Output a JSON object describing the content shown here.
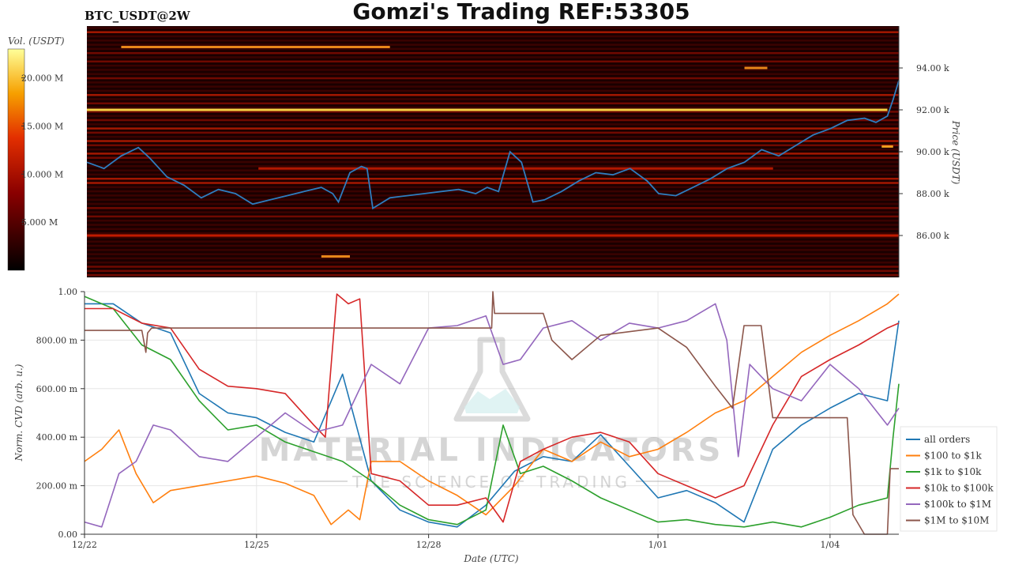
{
  "header": {
    "title": "Gomzi's Trading REF:53305",
    "symbol": "BTC_USDT@2W"
  },
  "watermark": {
    "line1": "MATERIAL INDICATORS",
    "line2": "THE SCIENCE OF TRADING"
  },
  "colors": {
    "heatmap_bg": "#1a0000",
    "price_line": "#2e7dbf",
    "accent_yellow": "#f5d142",
    "all_orders": "#1f77b4",
    "r100_1k": "#ff7f0e",
    "r1k_10k": "#2ca02c",
    "r10k_100k": "#d62728",
    "r100k_1m": "#9467bd",
    "r1m_10m": "#8c564b"
  },
  "chart_data": [
    {
      "type": "heatmap",
      "title": "Gomzi's Trading REF:53305",
      "ylabel": "Price (USDT)",
      "ylim": [
        84000,
        96000
      ],
      "yticks": [
        "86.00 k",
        "88.00 k",
        "90.00 k",
        "92.00 k",
        "94.00 k"
      ],
      "ytick_values": [
        86000,
        88000,
        90000,
        92000,
        94000
      ],
      "colorbar": {
        "label": "Vol. (USDT)",
        "ticks": [
          "5.000 M",
          "10.000 M",
          "15.000 M",
          "20.000 M"
        ],
        "tick_values": [
          5,
          10,
          15,
          20
        ],
        "range": [
          0,
          23
        ]
      },
      "xlim": [
        0,
        14.2
      ],
      "series": [
        {
          "x": [
            0,
            0.3,
            0.6,
            0.9,
            1.1,
            1.4,
            1.7,
            2.0,
            2.3,
            2.6,
            2.9,
            3.2,
            3.5,
            3.8,
            4.1,
            4.3,
            4.4,
            4.6,
            4.8,
            4.9,
            5.0,
            5.3,
            5.6,
            5.9,
            6.2,
            6.5,
            6.8,
            7.0,
            7.2,
            7.4,
            7.6,
            7.8,
            8.0,
            8.3,
            8.6,
            8.9,
            9.2,
            9.5,
            9.8,
            10.0,
            10.3,
            10.6,
            10.9,
            11.2,
            11.5,
            11.8,
            12.1,
            12.4,
            12.7,
            13.0,
            13.3,
            13.6,
            13.8,
            14.0,
            14.1,
            14.2
          ],
          "y": [
            89500,
            89200,
            89800,
            90200,
            89700,
            88800,
            88400,
            87800,
            88200,
            88000,
            87500,
            87700,
            87900,
            88100,
            88300,
            88000,
            87600,
            89000,
            89300,
            89200,
            87300,
            87800,
            87900,
            88000,
            88100,
            88200,
            88000,
            88300,
            88100,
            90000,
            89500,
            87600,
            87700,
            88100,
            88600,
            89000,
            88900,
            89200,
            88600,
            88000,
            87900,
            88300,
            88700,
            89200,
            89500,
            90100,
            89800,
            90300,
            90800,
            91100,
            91500,
            91600,
            91400,
            91700,
            92500,
            93400
          ]
        }
      ]
    },
    {
      "type": "line",
      "xlabel": "Date (UTC)",
      "ylabel": "Norm. CVD (arb. u.)",
      "ylim": [
        0,
        1
      ],
      "yticks": [
        "0.00",
        "200.00 m",
        "400.00 m",
        "600.00 m",
        "800.00 m",
        "1.00"
      ],
      "ytick_values": [
        0,
        0.2,
        0.4,
        0.6,
        0.8,
        1.0
      ],
      "xlim": [
        0,
        14.2
      ],
      "xticks": [
        "12/22",
        "12/25",
        "12/28",
        "1/01",
        "1/04"
      ],
      "xtick_values": [
        0,
        3,
        6,
        10,
        13
      ],
      "legend_position": "right",
      "series": [
        {
          "name": "all orders",
          "color": "#1f77b4",
          "x": [
            0,
            0.5,
            1.0,
            1.5,
            2.0,
            2.5,
            3.0,
            3.5,
            4.0,
            4.5,
            5.0,
            5.5,
            6.0,
            6.5,
            7.0,
            7.5,
            8.0,
            8.5,
            9.0,
            9.5,
            10.0,
            10.5,
            11.0,
            11.5,
            12.0,
            12.5,
            13.0,
            13.5,
            14.0,
            14.2
          ],
          "y": [
            0.95,
            0.95,
            0.87,
            0.83,
            0.58,
            0.5,
            0.48,
            0.42,
            0.38,
            0.66,
            0.22,
            0.1,
            0.05,
            0.03,
            0.12,
            0.26,
            0.32,
            0.3,
            0.41,
            0.28,
            0.15,
            0.18,
            0.13,
            0.05,
            0.35,
            0.45,
            0.52,
            0.58,
            0.55,
            0.88
          ]
        },
        {
          "name": "$100 to $1k",
          "color": "#ff7f0e",
          "x": [
            0,
            0.3,
            0.6,
            0.9,
            1.2,
            1.5,
            2.0,
            2.5,
            3.0,
            3.5,
            4.0,
            4.3,
            4.6,
            4.8,
            5.0,
            5.5,
            6.0,
            6.5,
            7.0,
            7.5,
            8.0,
            8.5,
            9.0,
            9.5,
            10.0,
            10.5,
            11.0,
            11.5,
            12.0,
            12.5,
            13.0,
            13.5,
            14.0,
            14.2
          ],
          "y": [
            0.3,
            0.35,
            0.43,
            0.25,
            0.13,
            0.18,
            0.2,
            0.22,
            0.24,
            0.21,
            0.16,
            0.04,
            0.1,
            0.06,
            0.3,
            0.3,
            0.22,
            0.16,
            0.08,
            0.2,
            0.35,
            0.3,
            0.38,
            0.32,
            0.35,
            0.42,
            0.5,
            0.55,
            0.65,
            0.75,
            0.82,
            0.88,
            0.95,
            0.99
          ]
        },
        {
          "name": "$1k to $10k",
          "color": "#2ca02c",
          "x": [
            0,
            0.5,
            1.0,
            1.5,
            2.0,
            2.5,
            3.0,
            3.5,
            4.0,
            4.5,
            5.0,
            5.5,
            6.0,
            6.5,
            7.0,
            7.3,
            7.6,
            8.0,
            8.5,
            9.0,
            9.5,
            10.0,
            10.5,
            11.0,
            11.5,
            12.0,
            12.5,
            13.0,
            13.5,
            14.0,
            14.1,
            14.2
          ],
          "y": [
            0.98,
            0.93,
            0.78,
            0.72,
            0.55,
            0.43,
            0.45,
            0.38,
            0.34,
            0.3,
            0.22,
            0.12,
            0.06,
            0.04,
            0.1,
            0.45,
            0.25,
            0.28,
            0.22,
            0.15,
            0.1,
            0.05,
            0.06,
            0.04,
            0.03,
            0.05,
            0.03,
            0.07,
            0.12,
            0.15,
            0.4,
            0.62
          ]
        },
        {
          "name": "$10k to $100k",
          "color": "#d62728",
          "x": [
            0,
            0.5,
            1.0,
            1.5,
            2.0,
            2.5,
            3.0,
            3.5,
            4.0,
            4.2,
            4.4,
            4.6,
            4.8,
            5.0,
            5.5,
            6.0,
            6.5,
            7.0,
            7.3,
            7.6,
            8.0,
            8.5,
            9.0,
            9.5,
            10.0,
            10.5,
            11.0,
            11.5,
            12.0,
            12.5,
            13.0,
            13.5,
            14.0,
            14.2
          ],
          "y": [
            0.93,
            0.93,
            0.87,
            0.85,
            0.68,
            0.61,
            0.6,
            0.58,
            0.45,
            0.4,
            0.99,
            0.95,
            0.97,
            0.25,
            0.22,
            0.12,
            0.12,
            0.15,
            0.05,
            0.3,
            0.35,
            0.4,
            0.42,
            0.38,
            0.25,
            0.2,
            0.15,
            0.2,
            0.45,
            0.65,
            0.72,
            0.78,
            0.85,
            0.87
          ]
        },
        {
          "name": "$100k to $1M",
          "color": "#9467bd",
          "x": [
            0,
            0.3,
            0.6,
            0.9,
            1.2,
            1.5,
            2.0,
            2.5,
            3.0,
            3.5,
            4.0,
            4.5,
            5.0,
            5.5,
            6.0,
            6.5,
            7.0,
            7.3,
            7.6,
            8.0,
            8.5,
            9.0,
            9.5,
            10.0,
            10.5,
            11.0,
            11.2,
            11.4,
            11.6,
            12.0,
            12.5,
            13.0,
            13.5,
            14.0,
            14.2
          ],
          "y": [
            0.05,
            0.03,
            0.25,
            0.3,
            0.45,
            0.43,
            0.32,
            0.3,
            0.4,
            0.5,
            0.42,
            0.45,
            0.7,
            0.62,
            0.85,
            0.86,
            0.9,
            0.7,
            0.72,
            0.85,
            0.88,
            0.8,
            0.87,
            0.85,
            0.88,
            0.95,
            0.8,
            0.32,
            0.7,
            0.6,
            0.55,
            0.7,
            0.6,
            0.45,
            0.52
          ]
        },
        {
          "name": "$1M to $10M",
          "color": "#8c564b",
          "x": [
            0,
            1.0,
            1.07,
            1.1,
            1.17,
            2.0,
            2.5,
            3.0,
            4.0,
            5.0,
            6.0,
            7.1,
            7.12,
            7.15,
            8.0,
            8.15,
            8.5,
            9.0,
            10.0,
            10.5,
            11.0,
            11.3,
            11.5,
            11.8,
            12.0,
            12.5,
            13.3,
            13.4,
            13.6,
            14.0,
            14.05,
            14.1,
            14.2
          ],
          "y": [
            0.84,
            0.84,
            0.75,
            0.83,
            0.85,
            0.85,
            0.85,
            0.85,
            0.85,
            0.85,
            0.85,
            0.85,
            1.0,
            0.91,
            0.91,
            0.8,
            0.72,
            0.82,
            0.85,
            0.77,
            0.61,
            0.52,
            0.86,
            0.86,
            0.48,
            0.48,
            0.48,
            0.08,
            0.0,
            0.0,
            0.27,
            0.27,
            0.27
          ]
        }
      ]
    }
  ]
}
